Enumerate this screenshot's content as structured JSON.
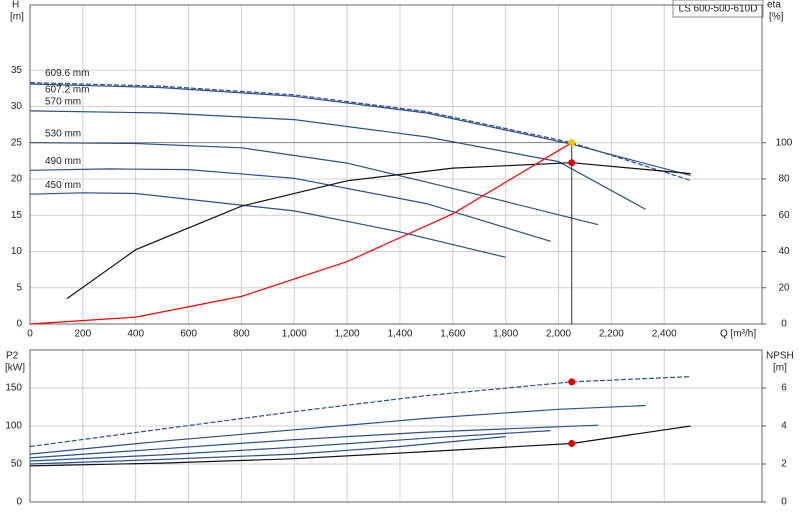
{
  "chart_data": [
    {
      "type": "line",
      "model": "LS 600-500-610D",
      "y_label": "H",
      "y_unit": "[m]",
      "y2_label": "eta",
      "y2_unit": "[%]",
      "x_label": "Q [m³/h]",
      "xlim": [
        0,
        2770
      ],
      "xticks": [
        0,
        200,
        400,
        600,
        800,
        {
          "value": 1000,
          "label": "1,000"
        },
        {
          "value": 1200,
          "label": "1,200"
        },
        {
          "value": 1400,
          "label": "1,400"
        },
        {
          "value": 1600,
          "label": "1,600"
        },
        {
          "value": 1800,
          "label": "1,800"
        },
        {
          "value": 2000,
          "label": "2,000"
        },
        {
          "value": 2200,
          "label": "2,200"
        },
        {
          "value": 2400,
          "label": "2,400"
        }
      ],
      "ylim": [
        0,
        44
      ],
      "yticks": [
        0,
        5,
        10,
        15,
        20,
        25,
        30,
        35
      ],
      "y2lim": [
        0,
        176
      ],
      "y2ticks": [
        0,
        20,
        40,
        60,
        80,
        100
      ],
      "grid": true,
      "series": [
        {
          "name": "609.6 mm",
          "color": "#2b4f86",
          "dashed": true,
          "x": [
            0,
            500,
            1000,
            1500,
            2050,
            2500
          ],
          "values": [
            33.3,
            32.8,
            31.6,
            29.3,
            25,
            19.8
          ]
        },
        {
          "name": "607.2 mm",
          "color": "#2b4f86",
          "dashed": false,
          "x": [
            0,
            500,
            1000,
            1500,
            2050,
            2500
          ],
          "values": [
            33.1,
            32.6,
            31.4,
            29.1,
            24.8,
            20.5
          ]
        },
        {
          "name": "570 mm",
          "color": "#2b4f86",
          "dashed": false,
          "x": [
            0,
            500,
            1000,
            1500,
            2000,
            2330
          ],
          "values": [
            29.4,
            29.1,
            28.2,
            25.8,
            22.4,
            15.8
          ]
        },
        {
          "name": "530 mm",
          "color": "#2b4f86",
          "dashed": false,
          "x": [
            0,
            400,
            800,
            1200,
            1600,
            2150
          ],
          "values": [
            25,
            24.9,
            24.3,
            22.2,
            18.7,
            13.7
          ]
        },
        {
          "name": "490 mm",
          "color": "#2b4f86",
          "dashed": false,
          "x": [
            0,
            300,
            600,
            1000,
            1500,
            1970
          ],
          "values": [
            21.2,
            21.4,
            21.3,
            20.1,
            16.6,
            11.4
          ]
        },
        {
          "name": "450 mm",
          "color": "#2b4f86",
          "dashed": false,
          "x": [
            0,
            200,
            400,
            1000,
            1400,
            1800
          ],
          "values": [
            17.9,
            18.1,
            18,
            15.6,
            12.7,
            9.2
          ]
        },
        {
          "color": "#111111",
          "dashed": false,
          "axis": "y2",
          "x": [
            140,
            400,
            800,
            1200,
            1600,
            2050,
            2500
          ],
          "values": [
            14,
            41,
            65,
            79,
            86,
            89,
            83
          ]
        },
        {
          "color": "#ff0000",
          "dashed": false,
          "x": [
            0,
            400,
            800,
            1200,
            1600,
            2050
          ],
          "values": [
            0,
            0.95,
            3.8,
            8.6,
            15.2,
            25
          ]
        }
      ],
      "points": [
        {
          "x": 2050,
          "y": 25,
          "color": "#f5c400",
          "droplines": true
        },
        {
          "x": 2050,
          "y": 89,
          "axis": "y2",
          "color": "#e00000"
        }
      ]
    },
    {
      "type": "line",
      "y_label": "P2",
      "y_unit": "[kW]",
      "y2_label": "NPSH",
      "y2_unit": "[m]",
      "ylim": [
        0,
        200
      ],
      "yticks": [
        0,
        50,
        100,
        150
      ],
      "y2lim": [
        0,
        8
      ],
      "y2ticks": [
        0,
        2,
        4,
        6
      ],
      "grid": true,
      "series": [
        {
          "color": "#2b4f86",
          "dashed": true,
          "x": [
            0,
            500,
            1000,
            1500,
            2050,
            2500
          ],
          "values": [
            73,
            96,
            119,
            140,
            158,
            165
          ]
        },
        {
          "color": "#2b4f86",
          "dashed": false,
          "x": [
            0,
            500,
            1000,
            1500,
            2000,
            2330
          ],
          "values": [
            63,
            80,
            95,
            110,
            122,
            127
          ]
        },
        {
          "color": "#2b4f86",
          "dashed": false,
          "x": [
            0,
            500,
            1000,
            1500,
            2150
          ],
          "values": [
            58,
            70,
            82,
            92,
            101
          ]
        },
        {
          "color": "#2b4f86",
          "dashed": false,
          "x": [
            0,
            500,
            1000,
            1500,
            1970
          ],
          "values": [
            54,
            62,
            72,
            84,
            94
          ]
        },
        {
          "color": "#2b4f86",
          "dashed": false,
          "x": [
            0,
            500,
            1000,
            1400,
            1800
          ],
          "values": [
            50,
            56,
            63,
            73,
            86
          ]
        },
        {
          "color": "#111111",
          "dashed": false,
          "axis": "y2",
          "x": [
            0,
            500,
            1000,
            1500,
            2050,
            2500
          ],
          "values": [
            1.9,
            2.05,
            2.28,
            2.65,
            3.08,
            4.0
          ]
        }
      ],
      "points": [
        {
          "x": 2050,
          "y": 158,
          "color": "#e00000"
        },
        {
          "x": 2050,
          "y": 3.08,
          "axis": "y2",
          "color": "#e00000"
        }
      ]
    }
  ]
}
